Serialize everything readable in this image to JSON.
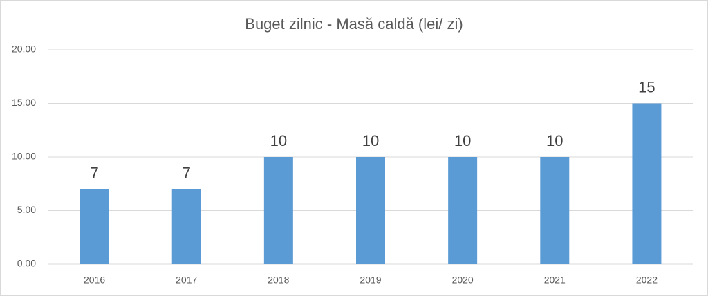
{
  "chart_data": {
    "type": "bar",
    "title": "Buget zilnic - Masă caldă (lei/ zi)",
    "categories": [
      "2016",
      "2017",
      "2018",
      "2019",
      "2020",
      "2021",
      "2022"
    ],
    "values": [
      7,
      7,
      10,
      10,
      10,
      10,
      15
    ],
    "color": "#5b9bd5",
    "ylim": [
      0,
      20
    ],
    "yticks": [
      {
        "value": 0,
        "label": "0.00"
      },
      {
        "value": 5,
        "label": "5.00"
      },
      {
        "value": 10,
        "label": "10.00"
      },
      {
        "value": 15,
        "label": "15.00"
      },
      {
        "value": 20,
        "label": "20.00"
      }
    ],
    "grid": true
  }
}
